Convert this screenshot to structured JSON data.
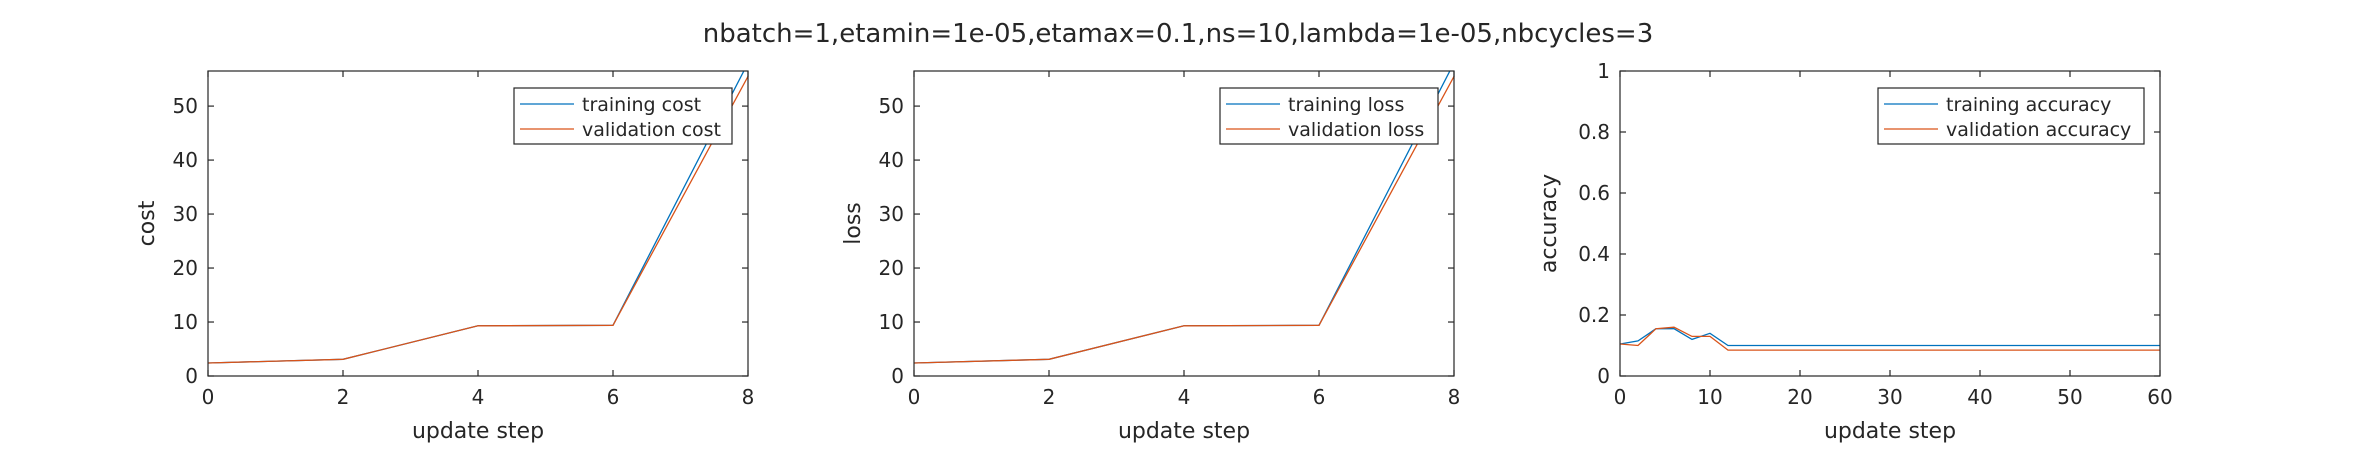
{
  "figure": {
    "title": "nbatch=1,etamin=1e-05,etamax=0.1,ns=10,lambda=1e-05,nbcycles=3"
  },
  "colors": {
    "training": "#0072BD",
    "validation": "#D95319",
    "axis": "#262626",
    "legend_border": "#262626"
  },
  "chart_data": [
    {
      "type": "line",
      "title": "",
      "xlabel": "update step",
      "ylabel": "cost",
      "xlim": [
        0,
        8
      ],
      "ylim": [
        0,
        56.5
      ],
      "xticks": [
        0,
        2,
        4,
        6,
        8
      ],
      "xtick_labels": [
        "0",
        "2",
        "4",
        "6",
        "8"
      ],
      "yticks": [
        0,
        10,
        20,
        30,
        40,
        50
      ],
      "ytick_labels": [
        "0",
        "10",
        "20",
        "30",
        "40",
        "50"
      ],
      "grid": false,
      "legend_position": "top-right",
      "series": [
        {
          "name": "training cost",
          "color": "#0072BD",
          "x": [
            0,
            2,
            4,
            6,
            8
          ],
          "y": [
            2.4,
            3.1,
            9.3,
            9.4,
            58.0
          ]
        },
        {
          "name": "validation cost",
          "color": "#D95319",
          "x": [
            0,
            2,
            4,
            6,
            8
          ],
          "y": [
            2.4,
            3.1,
            9.3,
            9.4,
            55.5
          ]
        }
      ]
    },
    {
      "type": "line",
      "title": "",
      "xlabel": "update step",
      "ylabel": "loss",
      "xlim": [
        0,
        8
      ],
      "ylim": [
        0,
        56.5
      ],
      "xticks": [
        0,
        2,
        4,
        6,
        8
      ],
      "xtick_labels": [
        "0",
        "2",
        "4",
        "6",
        "8"
      ],
      "yticks": [
        0,
        10,
        20,
        30,
        40,
        50
      ],
      "ytick_labels": [
        "0",
        "10",
        "20",
        "30",
        "40",
        "50"
      ],
      "grid": false,
      "legend_position": "top-right",
      "series": [
        {
          "name": "training loss",
          "color": "#0072BD",
          "x": [
            0,
            2,
            4,
            6,
            8
          ],
          "y": [
            2.4,
            3.1,
            9.3,
            9.4,
            58.0
          ]
        },
        {
          "name": "validation loss",
          "color": "#D95319",
          "x": [
            0,
            2,
            4,
            6,
            8
          ],
          "y": [
            2.4,
            3.1,
            9.3,
            9.4,
            55.5
          ]
        }
      ]
    },
    {
      "type": "line",
      "title": "",
      "xlabel": "update step",
      "ylabel": "accuracy",
      "xlim": [
        0,
        60
      ],
      "ylim": [
        0,
        1
      ],
      "xticks": [
        0,
        10,
        20,
        30,
        40,
        50,
        60
      ],
      "xtick_labels": [
        "0",
        "10",
        "20",
        "30",
        "40",
        "50",
        "60"
      ],
      "yticks": [
        0,
        0.2,
        0.4,
        0.6,
        0.8,
        1
      ],
      "ytick_labels": [
        "0",
        "0.2",
        "0.4",
        "0.6",
        "0.8",
        "1"
      ],
      "grid": false,
      "legend_position": "top-right",
      "series": [
        {
          "name": "training accuracy",
          "color": "#0072BD",
          "x": [
            0,
            2,
            4,
            6,
            8,
            10,
            12,
            60
          ],
          "y": [
            0.105,
            0.115,
            0.155,
            0.155,
            0.12,
            0.14,
            0.1,
            0.1
          ]
        },
        {
          "name": "validation accuracy",
          "color": "#D95319",
          "x": [
            0,
            2,
            4,
            6,
            8,
            10,
            12,
            60
          ],
          "y": [
            0.105,
            0.1,
            0.155,
            0.16,
            0.13,
            0.13,
            0.085,
            0.085
          ]
        }
      ]
    }
  ]
}
